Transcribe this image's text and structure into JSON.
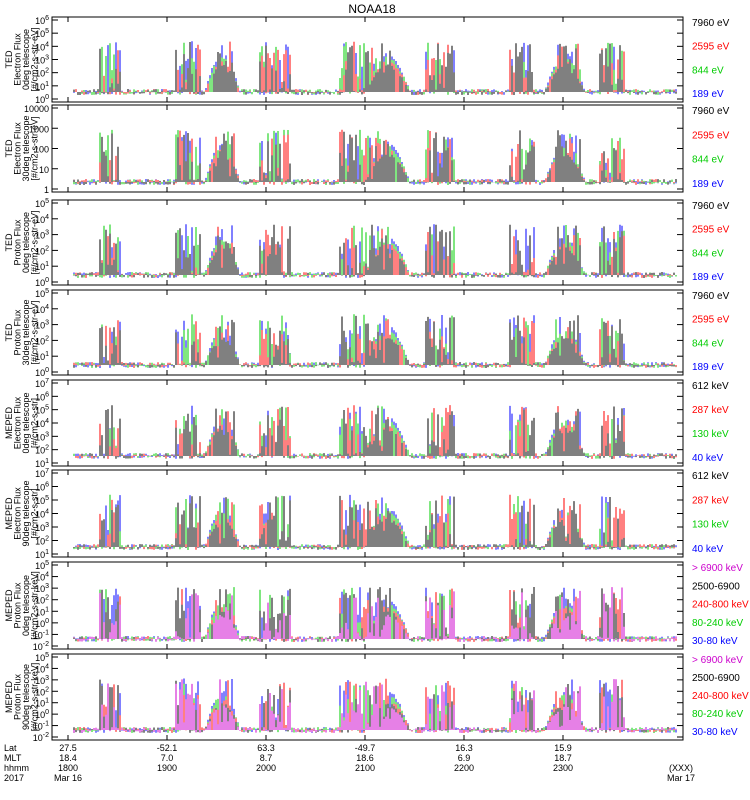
{
  "title": "NOAA18",
  "chart_data": {
    "type": "line",
    "time_axis": {
      "rows": [
        {
          "name": "Lat",
          "values": [
            "27.5",
            "-52.1",
            "63.3",
            "-49.7",
            "16.3",
            "15.9"
          ]
        },
        {
          "name": "MLT",
          "values": [
            "18.4",
            "7.0",
            "8.7",
            "18.6",
            "6.9",
            "18.7"
          ]
        },
        {
          "name": "hhmm",
          "values": [
            "1800",
            "1900",
            "2000",
            "2100",
            "2200",
            "2300"
          ]
        }
      ],
      "year": "2017",
      "start_date": "Mar 16",
      "end_date": "Mar 17",
      "end_marker": "(XXX)"
    },
    "panels": [
      {
        "ylabel": [
          "TED",
          "Electron Flux",
          "0deg telescope",
          "[#/cm2-s-str-eV]"
        ],
        "y_ticks": [
          "10^6",
          "10^5",
          "10^4",
          "10^3",
          "10^2",
          "10^1",
          "10^0"
        ],
        "legend": [
          {
            "label": "7960 eV",
            "color": "#000000"
          },
          {
            "label": "2595 eV",
            "color": "#ff0000"
          },
          {
            "label": "844 eV",
            "color": "#00cc00"
          },
          {
            "label": "189 eV",
            "color": "#0000ff"
          }
        ]
      },
      {
        "ylabel": [
          "TED",
          "Electron Flux",
          "30deg telescope",
          "[#/cm2-s-str-eV]"
        ],
        "y_ticks": [
          "10000",
          "1000",
          "100",
          "10",
          "1"
        ],
        "legend": [
          {
            "label": "7960 eV",
            "color": "#000000"
          },
          {
            "label": "2595 eV",
            "color": "#ff0000"
          },
          {
            "label": "844 eV",
            "color": "#00cc00"
          },
          {
            "label": "189 eV",
            "color": "#0000ff"
          }
        ]
      },
      {
        "ylabel": [
          "TED",
          "Proton Flux",
          "0deg telescope",
          "[#/cm2-s-str-eV]"
        ],
        "y_ticks": [
          "10^5",
          "10^4",
          "10^3",
          "10^2",
          "10^1",
          "10^0"
        ],
        "legend": [
          {
            "label": "7960 eV",
            "color": "#000000"
          },
          {
            "label": "2595 eV",
            "color": "#ff0000"
          },
          {
            "label": "844 eV",
            "color": "#00cc00"
          },
          {
            "label": "189 eV",
            "color": "#0000ff"
          }
        ]
      },
      {
        "ylabel": [
          "TED",
          "Proton Flux",
          "30deg telescope",
          "[#/cm2-s-str-eV]"
        ],
        "y_ticks": [
          "10^5",
          "10^4",
          "10^3",
          "10^2",
          "10^1",
          "10^0"
        ],
        "legend": [
          {
            "label": "7960 eV",
            "color": "#000000"
          },
          {
            "label": "2595 eV",
            "color": "#ff0000"
          },
          {
            "label": "844 eV",
            "color": "#00cc00"
          },
          {
            "label": "189 eV",
            "color": "#0000ff"
          }
        ]
      },
      {
        "ylabel": [
          "MEPED",
          "Electron Flux",
          "0deg telescope",
          "[#/cm2-s-str]"
        ],
        "y_ticks": [
          "10^7",
          "10^6",
          "10^5",
          "10^4",
          "10^3",
          "10^2",
          "10^1"
        ],
        "legend": [
          {
            "label": "612 keV",
            "color": "#000000"
          },
          {
            "label": "287 keV",
            "color": "#ff0000"
          },
          {
            "label": "130 keV",
            "color": "#00cc00"
          },
          {
            "label": "40 keV",
            "color": "#0000ff"
          }
        ]
      },
      {
        "ylabel": [
          "MEPED",
          "Electron Flux",
          "90deg telescope",
          "[#/cm2-s-str]"
        ],
        "y_ticks": [
          "10^7",
          "10^6",
          "10^5",
          "10^4",
          "10^3",
          "10^2",
          "10^1"
        ],
        "legend": [
          {
            "label": "612 keV",
            "color": "#000000"
          },
          {
            "label": "287 keV",
            "color": "#ff0000"
          },
          {
            "label": "130 keV",
            "color": "#00cc00"
          },
          {
            "label": "40 keV",
            "color": "#0000ff"
          }
        ]
      },
      {
        "ylabel": [
          "MEPED",
          "Proton Flux",
          "0deg telescope",
          "[#/cm2-s-str-keV]"
        ],
        "y_ticks": [
          "10^5",
          "10^4",
          "10^3",
          "10^2",
          "10^1",
          "10^0",
          "10^-1",
          "10^-2"
        ],
        "legend": [
          {
            "label": "> 6900 keV",
            "color": "#cc00cc"
          },
          {
            "label": "2500-6900",
            "color": "#000000"
          },
          {
            "label": "240-800 keV",
            "color": "#ff0000"
          },
          {
            "label": "80-240 keV",
            "color": "#00cc00"
          },
          {
            "label": "30-80 keV",
            "color": "#0000ff"
          }
        ]
      },
      {
        "ylabel": [
          "MEPED",
          "Proton Flux",
          "90deg telescope",
          "[#/cm2-s-str-keV]"
        ],
        "y_ticks": [
          "10^5",
          "10^4",
          "10^3",
          "10^2",
          "10^1",
          "10^0",
          "10^-1",
          "10^-2"
        ],
        "legend": [
          {
            "label": "> 6900 keV",
            "color": "#cc00cc"
          },
          {
            "label": "2500-6900",
            "color": "#000000"
          },
          {
            "label": "240-800 keV",
            "color": "#ff0000"
          },
          {
            "label": "80-240 keV",
            "color": "#00cc00"
          },
          {
            "label": "30-80 keV",
            "color": "#0000ff"
          }
        ]
      }
    ]
  }
}
